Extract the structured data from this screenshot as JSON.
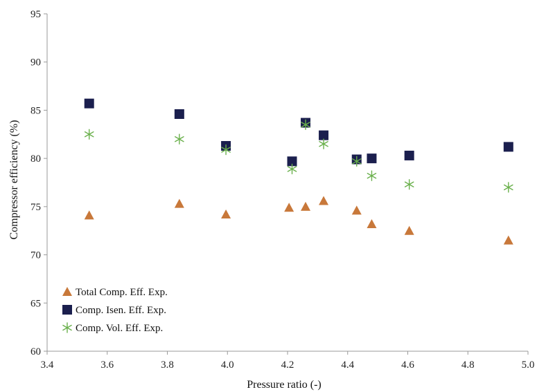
{
  "chart_data": {
    "type": "scatter",
    "title": "",
    "xlabel": "Pressure ratio (-)",
    "ylabel": "Compressor efficiency (%)",
    "xlim": [
      3.4,
      5.0
    ],
    "ylim": [
      60,
      95
    ],
    "xticks": [
      "3.4",
      "3.6",
      "3.8",
      "4.0",
      "4.2",
      "4.4",
      "4.6",
      "4.8",
      "5.0"
    ],
    "yticks": [
      "60",
      "65",
      "70",
      "75",
      "80",
      "85",
      "90",
      "95"
    ],
    "grid": false,
    "legend_position": "bottom-left",
    "series": [
      {
        "name": "Total Comp. Eff. Exp.",
        "marker": "triangle",
        "color": "#c8783a",
        "x": [
          3.54,
          3.84,
          3.995,
          4.205,
          4.26,
          4.32,
          4.43,
          4.48,
          4.605,
          4.935
        ],
        "y": [
          74.1,
          75.3,
          74.2,
          74.9,
          75.0,
          75.6,
          74.6,
          73.2,
          72.5,
          71.5
        ]
      },
      {
        "name": "Comp. Isen. Eff. Exp.",
        "marker": "square",
        "color": "#1b1f4e",
        "x": [
          3.54,
          3.84,
          3.995,
          4.215,
          4.26,
          4.32,
          4.43,
          4.48,
          4.605,
          4.935
        ],
        "y": [
          85.7,
          84.6,
          81.3,
          79.7,
          83.7,
          82.4,
          79.9,
          80.0,
          80.3,
          81.2
        ]
      },
      {
        "name": "Comp. Vol. Eff. Exp.",
        "marker": "asterisk",
        "color": "#6ab04c",
        "x": [
          3.54,
          3.84,
          3.995,
          4.215,
          4.26,
          4.32,
          4.43,
          4.48,
          4.605,
          4.935
        ],
        "y": [
          82.5,
          82.0,
          80.9,
          78.9,
          83.5,
          81.5,
          79.7,
          78.2,
          77.3,
          77.0
        ]
      }
    ]
  }
}
